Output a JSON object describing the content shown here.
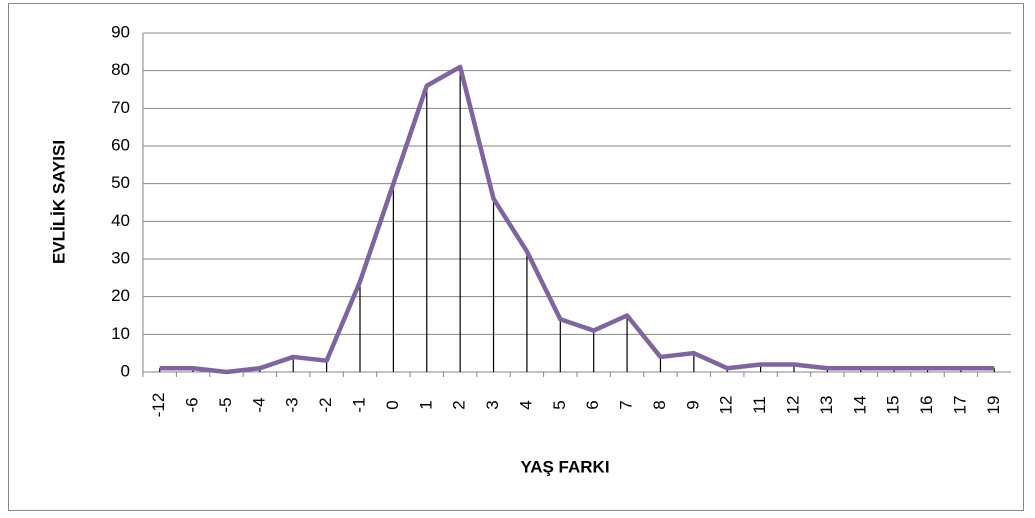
{
  "chart_data": {
    "type": "line",
    "x_label": "YAŞ FARKI",
    "y_label": "EVLİLİK SAYISI",
    "categories": [
      "-12",
      "-6",
      "-5",
      "-4",
      "-3",
      "-2",
      "-1",
      "0",
      "1",
      "2",
      "3",
      "4",
      "5",
      "6",
      "7",
      "8",
      "9",
      "12",
      "11",
      "12",
      "13",
      "14",
      "15",
      "16",
      "17",
      "19"
    ],
    "values": [
      1,
      1,
      0,
      1,
      4,
      3,
      24,
      50,
      76,
      81,
      46,
      32,
      14,
      11,
      15,
      4,
      5,
      1,
      2,
      2,
      1,
      1,
      1,
      1,
      1,
      1
    ],
    "color": "#8064a2",
    "drop_lines": true,
    "ylim": [
      0,
      90
    ],
    "yticks": [
      0,
      10,
      20,
      30,
      40,
      50,
      60,
      70,
      80,
      90
    ],
    "grid": true
  }
}
